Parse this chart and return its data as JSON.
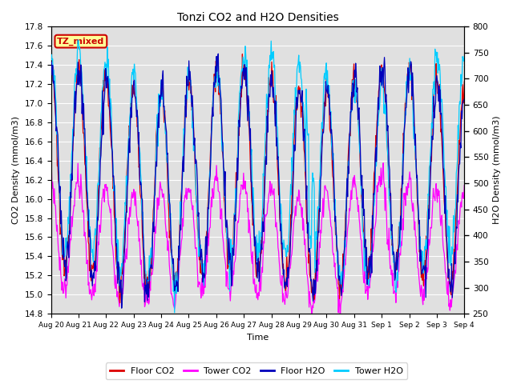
{
  "title": "Tonzi CO2 and H2O Densities",
  "xlabel": "Time",
  "ylabel_left": "CO2 Density (mmol/m3)",
  "ylabel_right": "H2O Density (mmol/m3)",
  "ylim_left": [
    14.8,
    17.8
  ],
  "ylim_right": [
    250,
    800
  ],
  "yticks_left": [
    14.8,
    15.0,
    15.2,
    15.4,
    15.6,
    15.8,
    16.0,
    16.2,
    16.4,
    16.6,
    16.8,
    17.0,
    17.2,
    17.4,
    17.6,
    17.8
  ],
  "yticks_right": [
    250,
    300,
    350,
    400,
    450,
    500,
    550,
    600,
    650,
    700,
    750,
    800
  ],
  "annotation_text": "TZ_mixed",
  "annotation_color": "#cc0000",
  "annotation_bg": "#ffff99",
  "colors": {
    "floor_co2": "#dd0000",
    "tower_co2": "#ff00ff",
    "floor_h2o": "#0000bb",
    "tower_h2o": "#00ccff"
  },
  "legend_labels": [
    "Floor CO2",
    "Tower CO2",
    "Floor H2O",
    "Tower H2O"
  ],
  "n_days": 15,
  "points_per_day": 48,
  "bg_color": "#e0e0e0",
  "grid_color": "#ffffff",
  "tick_labels": [
    "Aug 20",
    "Aug 21",
    "Aug 22",
    "Aug 23",
    "Aug 24",
    "Aug 25",
    "Aug 26",
    "Aug 27",
    "Aug 28",
    "Aug 29",
    "Aug 30",
    "Aug 31",
    "Sep 1",
    "Sep 2",
    "Sep 3",
    "Sep 4"
  ]
}
